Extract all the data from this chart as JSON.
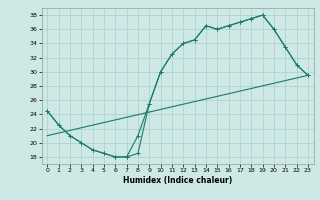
{
  "title": "",
  "xlabel": "Humidex (Indice chaleur)",
  "background_color": "#cde8e5",
  "grid_color": "#aacfcb",
  "line_color": "#1a7a6e",
  "xlim": [
    -0.5,
    23.5
  ],
  "ylim": [
    17,
    39
  ],
  "yticks": [
    18,
    20,
    22,
    24,
    26,
    28,
    30,
    32,
    34,
    36,
    38
  ],
  "xticks": [
    0,
    1,
    2,
    3,
    4,
    5,
    6,
    7,
    8,
    9,
    10,
    11,
    12,
    13,
    14,
    15,
    16,
    17,
    18,
    19,
    20,
    21,
    22,
    23
  ],
  "line1_x": [
    0,
    1,
    2,
    3,
    4,
    5,
    6,
    7,
    8,
    9,
    10,
    11,
    12,
    13,
    14,
    15,
    16,
    17,
    18,
    19,
    20,
    21,
    22,
    23
  ],
  "line1_y": [
    24.5,
    22.5,
    21,
    20,
    19,
    18.5,
    18,
    18,
    18.5,
    25.5,
    30,
    32.5,
    34,
    34.5,
    36.5,
    36,
    36.5,
    37,
    37.5,
    38,
    36,
    33.5,
    31,
    29.5
  ],
  "line2_x": [
    0,
    1,
    2,
    3,
    4,
    5,
    6,
    7,
    8,
    9,
    10,
    11,
    12,
    13,
    14,
    15,
    16,
    17,
    18,
    19,
    20,
    21,
    22,
    23
  ],
  "line2_y": [
    24.5,
    22.5,
    21,
    20,
    19,
    18.5,
    18,
    18,
    21,
    25.5,
    30,
    32.5,
    34,
    34.5,
    36.5,
    36,
    36.5,
    37,
    37.5,
    38,
    36,
    33.5,
    31,
    29.5
  ],
  "line3_x": [
    0,
    23
  ],
  "line3_y": [
    21,
    29.5
  ],
  "marker": "+",
  "markersize": 3.5,
  "linewidth": 0.8
}
